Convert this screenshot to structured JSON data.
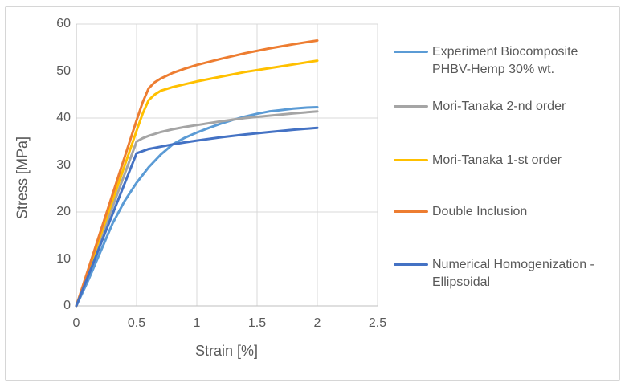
{
  "colors": {
    "grid": "#d9d9d9",
    "axis": "#bfbfbf",
    "text": "#595959",
    "frame_border": "#d6d6d6",
    "background": "#ffffff"
  },
  "legend": {
    "items": [
      {
        "label": "Experiment Biocomposite PHBV-Hemp 30% wt.",
        "color": "#5B9BD5"
      },
      {
        "label": "Mori-Tanaka 2-nd order",
        "color": "#A5A5A5"
      },
      {
        "label": "Mori-Tanaka 1-st order",
        "color": "#FFC000"
      },
      {
        "label": "Double Inclusion",
        "color": "#ED7D31"
      },
      {
        "label": "Numerical Homogenization - Ellipsoidal",
        "color": "#4472C4"
      }
    ]
  },
  "chart_data": {
    "type": "line",
    "title": "",
    "xlabel": "Strain [%]",
    "ylabel": "Stress [MPa]",
    "xlim": [
      0,
      2.5
    ],
    "ylim": [
      0,
      60
    ],
    "x_ticks": [
      0,
      0.5,
      1,
      1.5,
      2,
      2.5
    ],
    "x_tick_labels": [
      "0",
      "0.5",
      "1",
      "1.5",
      "2",
      "2.5"
    ],
    "y_ticks": [
      0,
      10,
      20,
      30,
      40,
      50,
      60
    ],
    "y_tick_labels": [
      "0",
      "10",
      "20",
      "30",
      "40",
      "50",
      "60"
    ],
    "grid": true,
    "legend_position": "right",
    "series": [
      {
        "name": "Experiment Biocomposite PHBV-Hemp 30% wt.",
        "color": "#5B9BD5",
        "x": [
          0,
          0.1,
          0.2,
          0.3,
          0.4,
          0.5,
          0.6,
          0.7,
          0.8,
          0.9,
          1.0,
          1.1,
          1.2,
          1.3,
          1.4,
          1.5,
          1.6,
          1.7,
          1.8,
          1.9,
          2.0
        ],
        "y": [
          0,
          5.5,
          11.5,
          17.5,
          22.3,
          26.2,
          29.5,
          32.2,
          34.4,
          35.8,
          36.9,
          37.9,
          38.8,
          39.6,
          40.3,
          40.9,
          41.4,
          41.7,
          42.0,
          42.2,
          42.3
        ]
      },
      {
        "name": "Mori-Tanaka 2-nd order",
        "color": "#A5A5A5",
        "x": [
          0,
          0.1,
          0.2,
          0.3,
          0.4,
          0.5,
          0.55,
          0.6,
          0.7,
          0.8,
          0.9,
          1.0,
          1.2,
          1.4,
          1.6,
          1.8,
          2.0
        ],
        "y": [
          0,
          7,
          14,
          21,
          28,
          35,
          35.7,
          36.2,
          37.0,
          37.6,
          38.1,
          38.5,
          39.3,
          40.0,
          40.5,
          41.0,
          41.4
        ]
      },
      {
        "name": "Mori-Tanaka 1-st order",
        "color": "#FFC000",
        "x": [
          0,
          0.1,
          0.2,
          0.3,
          0.4,
          0.5,
          0.55,
          0.6,
          0.65,
          0.7,
          0.8,
          0.9,
          1.0,
          1.2,
          1.4,
          1.6,
          1.8,
          2.0
        ],
        "y": [
          0,
          7.5,
          15,
          22.4,
          29.8,
          37.3,
          40.9,
          43.8,
          45.0,
          45.8,
          46.6,
          47.2,
          47.8,
          48.8,
          49.8,
          50.6,
          51.4,
          52.2
        ]
      },
      {
        "name": "Double Inclusion",
        "color": "#ED7D31",
        "x": [
          0,
          0.1,
          0.2,
          0.3,
          0.4,
          0.5,
          0.55,
          0.6,
          0.65,
          0.7,
          0.8,
          0.9,
          1.0,
          1.2,
          1.4,
          1.6,
          1.8,
          2.0
        ],
        "y": [
          0,
          7.9,
          15.8,
          23.7,
          31.6,
          39.5,
          43.3,
          46.3,
          47.6,
          48.4,
          49.6,
          50.5,
          51.3,
          52.6,
          53.8,
          54.8,
          55.7,
          56.5
        ]
      },
      {
        "name": "Numerical Homogenization - Ellipsoidal",
        "color": "#4472C4",
        "x": [
          0,
          0.1,
          0.2,
          0.3,
          0.4,
          0.5,
          0.6,
          0.7,
          0.8,
          0.9,
          1.0,
          1.2,
          1.4,
          1.6,
          1.8,
          2.0
        ],
        "y": [
          0,
          6.5,
          13,
          19.5,
          26,
          32.5,
          33.4,
          33.9,
          34.4,
          34.8,
          35.2,
          35.9,
          36.5,
          37.0,
          37.5,
          37.9
        ]
      }
    ]
  }
}
